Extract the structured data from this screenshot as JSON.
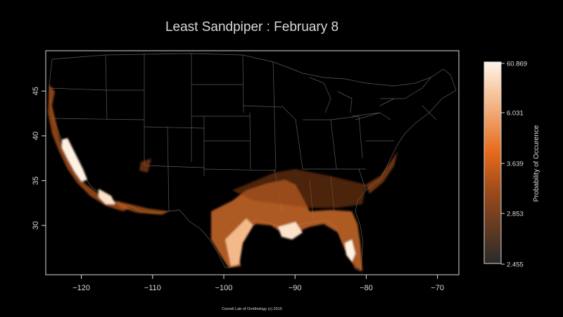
{
  "title": "Least Sandpiper  :  February 8",
  "credit": "Cornell Lab of Ornithology (c) 2015",
  "map": {
    "x_ticks": [
      "−120",
      "−110",
      "−100",
      "−90",
      "−80",
      "−70"
    ],
    "y_ticks": [
      "45",
      "40",
      "35",
      "30"
    ],
    "x_range": [
      -125,
      -67
    ],
    "y_range": [
      24.5,
      49.5
    ]
  },
  "legend": {
    "label": "Probability of Occurence",
    "ticks": [
      "60.869",
      "6.031",
      "3.639",
      "2.853",
      "2.455"
    ]
  },
  "colors": {
    "background": "#000000",
    "frame": "#d9d9d9",
    "borders": "#5a5a5a",
    "occurrence_high": "#fff4ea",
    "occurrence_mid": "#e56a1c",
    "occurrence_low": "#2a2a2a"
  }
}
